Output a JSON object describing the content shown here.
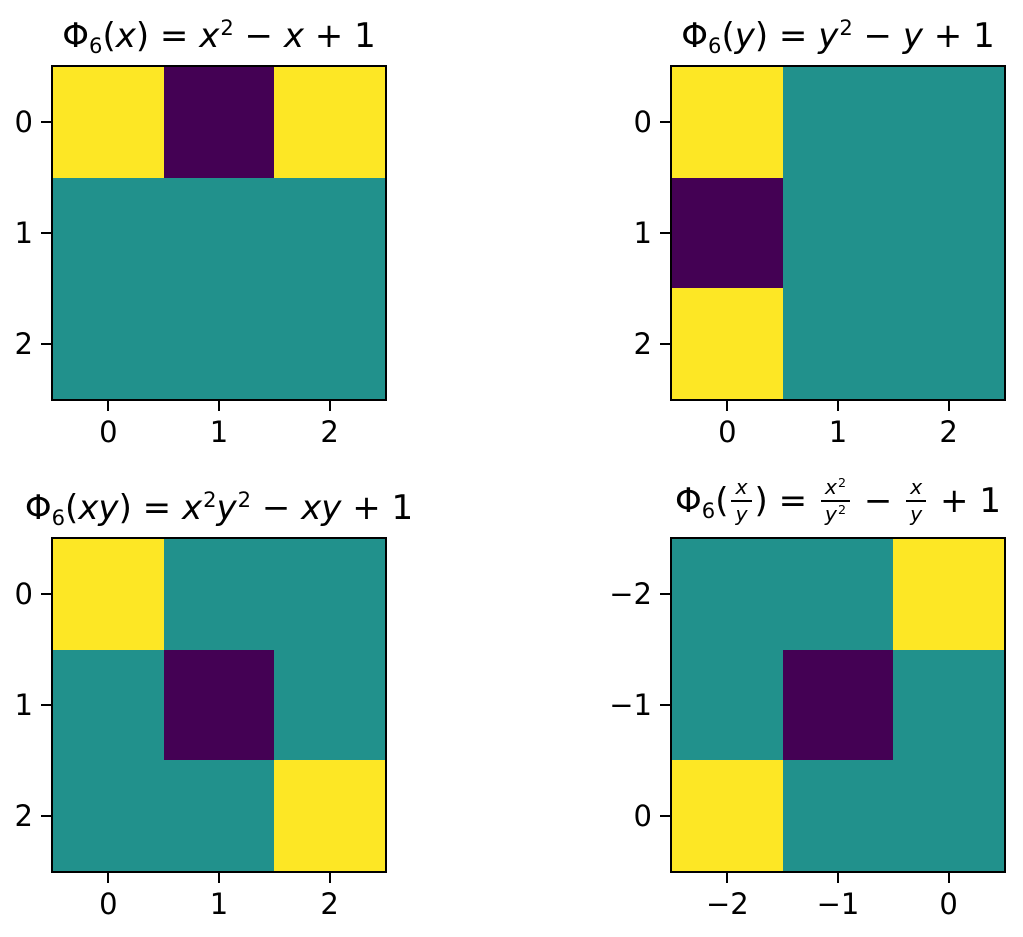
{
  "figure": {
    "background": "#ffffff",
    "colormap": "viridis",
    "text_color": "#000000"
  },
  "chart_data": [
    {
      "type": "heatmap",
      "title": "Φ₆(x) = x² − x + 1",
      "title_parts": [
        {
          "t": "Φ"
        },
        {
          "sub": "6"
        },
        {
          "t": "("
        },
        {
          "i": "x"
        },
        {
          "t": ") = "
        },
        {
          "i": "x"
        },
        {
          "sup": "2"
        },
        {
          "t": " − "
        },
        {
          "i": "x"
        },
        {
          "t": " + 1"
        }
      ],
      "x_ticklabels": [
        "0",
        "1",
        "2"
      ],
      "y_ticklabels": [
        "0",
        "1",
        "2"
      ],
      "values": [
        [
          2,
          0,
          2
        ],
        [
          1,
          1,
          1
        ],
        [
          1,
          1,
          1
        ]
      ],
      "value_color_map": {
        "0": "#440154",
        "1": "#21918c",
        "2": "#fde725"
      }
    },
    {
      "type": "heatmap",
      "title": "Φ₆(y) = y² − y + 1",
      "title_parts": [
        {
          "t": "Φ"
        },
        {
          "sub": "6"
        },
        {
          "t": "("
        },
        {
          "i": "y"
        },
        {
          "t": ") = "
        },
        {
          "i": "y"
        },
        {
          "sup": "2"
        },
        {
          "t": " − "
        },
        {
          "i": "y"
        },
        {
          "t": " + 1"
        }
      ],
      "x_ticklabels": [
        "0",
        "1",
        "2"
      ],
      "y_ticklabels": [
        "0",
        "1",
        "2"
      ],
      "values": [
        [
          2,
          1,
          1
        ],
        [
          0,
          1,
          1
        ],
        [
          2,
          1,
          1
        ]
      ],
      "value_color_map": {
        "0": "#440154",
        "1": "#21918c",
        "2": "#fde725"
      }
    },
    {
      "type": "heatmap",
      "title": "Φ₆(xy) = x²y² − xy + 1",
      "title_parts": [
        {
          "t": "Φ"
        },
        {
          "sub": "6"
        },
        {
          "t": "("
        },
        {
          "i": "xy"
        },
        {
          "t": ") = "
        },
        {
          "i": "x"
        },
        {
          "sup": "2"
        },
        {
          "i": "y"
        },
        {
          "sup": "2"
        },
        {
          "t": " − "
        },
        {
          "i": "xy"
        },
        {
          "t": " + 1"
        }
      ],
      "x_ticklabels": [
        "0",
        "1",
        "2"
      ],
      "y_ticklabels": [
        "0",
        "1",
        "2"
      ],
      "values": [
        [
          2,
          1,
          1
        ],
        [
          1,
          0,
          1
        ],
        [
          1,
          1,
          2
        ]
      ],
      "value_color_map": {
        "0": "#440154",
        "1": "#21918c",
        "2": "#fde725"
      }
    },
    {
      "type": "heatmap",
      "title": "Φ₆(x/y) = x²/y² − x/y + 1",
      "title_parts": [
        {
          "t": "Φ"
        },
        {
          "sub": "6"
        },
        {
          "t": "("
        },
        {
          "frac": {
            "num": [
              {
                "i": "x"
              }
            ],
            "den": [
              {
                "i": "y"
              }
            ]
          }
        },
        {
          "t": ") = "
        },
        {
          "frac": {
            "num": [
              {
                "i": "x"
              },
              {
                "sup": "2"
              }
            ],
            "den": [
              {
                "i": "y"
              },
              {
                "sup": "2"
              }
            ]
          }
        },
        {
          "t": " − "
        },
        {
          "frac": {
            "num": [
              {
                "i": "x"
              }
            ],
            "den": [
              {
                "i": "y"
              }
            ]
          }
        },
        {
          "t": " + 1"
        }
      ],
      "x_ticklabels": [
        "−2",
        "−1",
        "0"
      ],
      "y_ticklabels": [
        "−2",
        "−1",
        "0"
      ],
      "values": [
        [
          1,
          1,
          2
        ],
        [
          1,
          0,
          1
        ],
        [
          2,
          1,
          1
        ]
      ],
      "value_color_map": {
        "0": "#440154",
        "1": "#21918c",
        "2": "#fde725"
      }
    }
  ]
}
